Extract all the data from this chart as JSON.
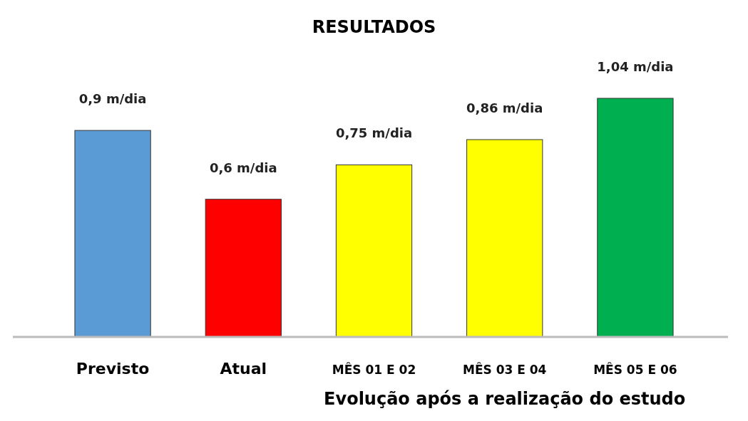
{
  "chart_data": {
    "type": "bar",
    "title": "RESULTADOS",
    "xlabel": "Evolução após a realização do estudo",
    "categories": [
      "Previsto",
      "Atual",
      "MÊS 01 E 02",
      "MÊS 03 E 04",
      "MÊS 05 E 06"
    ],
    "values": [
      0.9,
      0.6,
      0.75,
      0.86,
      1.04
    ],
    "colors": [
      "#5b9bd5",
      "#ff0000",
      "#ffff00",
      "#ffff00",
      "#00b050"
    ],
    "value_labels": [
      "0,9 m/dia",
      "0,6 m/dia",
      "0,75 m/dia",
      "0,86 m/dia",
      "1,04 m/dia"
    ]
  }
}
